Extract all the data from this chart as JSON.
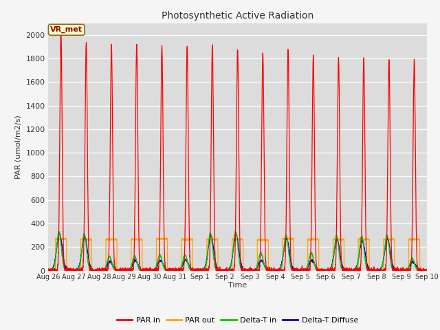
{
  "title": "Photosynthetic Active Radiation",
  "ylabel": "PAR (umol/m2/s)",
  "xlabel": "Time",
  "annotation": "VR_met",
  "ylim": [
    0,
    2100
  ],
  "yticks": [
    0,
    200,
    400,
    600,
    800,
    1000,
    1200,
    1400,
    1600,
    1800,
    2000
  ],
  "x_labels": [
    "Aug 26",
    "Aug 27",
    "Aug 28",
    "Aug 29",
    "Aug 30",
    "Aug 31",
    "Sep 1",
    "Sep 2",
    "Sep 3",
    "Sep 4",
    "Sep 5",
    "Sep 6",
    "Sep 7",
    "Sep 8",
    "Sep 9",
    "Sep 10"
  ],
  "num_days": 15,
  "par_in_peaks": [
    2050,
    1940,
    1920,
    1910,
    1900,
    1900,
    1920,
    1870,
    1850,
    1870,
    1820,
    1790,
    1810,
    1790,
    1790
  ],
  "par_out_plateaus": [
    270,
    265,
    265,
    265,
    270,
    265,
    265,
    265,
    260,
    270,
    265,
    265,
    265,
    265,
    265
  ],
  "delta_t_in_peaks": [
    330,
    310,
    120,
    120,
    130,
    130,
    320,
    330,
    150,
    300,
    150,
    290,
    290,
    300,
    100
  ],
  "delta_t_diff_peaks": [
    310,
    285,
    75,
    85,
    85,
    90,
    295,
    305,
    85,
    275,
    85,
    265,
    255,
    270,
    75
  ],
  "color_par_in": "#ff0000",
  "color_par_out": "#ffa500",
  "color_delta_t_in": "#00cc00",
  "color_delta_t_diff": "#0000cc",
  "bg_color": "#dcdcdc",
  "fig_bg_color": "#f5f5f5",
  "legend_labels": [
    "PAR in",
    "PAR out",
    "Delta-T in",
    "Delta-T Diffuse"
  ],
  "figwidth": 6.4,
  "figheight": 4.8,
  "dpi": 100
}
